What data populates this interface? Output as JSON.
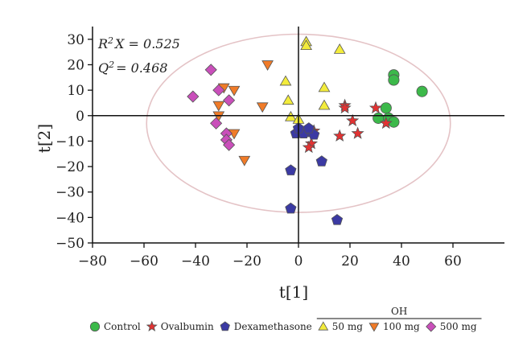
{
  "chart_data": {
    "type": "scatter",
    "title": "",
    "xlabel": "t[1]",
    "ylabel": "t[2]",
    "xlim": [
      -80,
      80
    ],
    "ylim": [
      -50,
      35
    ],
    "xticks": [
      -80,
      -60,
      -40,
      -20,
      0,
      20,
      40,
      60
    ],
    "yticks": [
      -50,
      -40,
      -30,
      -20,
      -10,
      0,
      10,
      20,
      30
    ],
    "grid": false,
    "annotations": {
      "r2x_prefix": "R",
      "r2x_sup": "2",
      "r2x_rest": "X = 0.525",
      "q2_prefix": "Q",
      "q2_sup": "2",
      "q2_rest": "= 0.468"
    },
    "confidence_ellipse": {
      "cx": 0,
      "cy": -3,
      "rx": 59,
      "ry": 35,
      "color": "#e4c3c6"
    },
    "legend": {
      "position": "bottom",
      "group_label": "OH"
    },
    "series": [
      {
        "name": "Control",
        "marker": "circle",
        "color": "#3cb94a",
        "points": [
          [
            37,
            16
          ],
          [
            37,
            14
          ],
          [
            48,
            9.5
          ],
          [
            34,
            3
          ],
          [
            31,
            -1
          ],
          [
            35,
            -1
          ],
          [
            37,
            -2.5
          ]
        ]
      },
      {
        "name": "Ovalbumin",
        "marker": "star",
        "color": "#e23232",
        "points": [
          [
            18,
            4
          ],
          [
            18,
            3
          ],
          [
            30,
            3
          ],
          [
            21,
            -2
          ],
          [
            34,
            -3
          ],
          [
            23,
            -7
          ],
          [
            16,
            -8
          ],
          [
            6,
            -6
          ],
          [
            5,
            -11
          ],
          [
            4,
            -12.5
          ]
        ]
      },
      {
        "name": "Dexamethasone",
        "marker": "pentagon",
        "color": "#3b3aa3",
        "points": [
          [
            -1,
            -7
          ],
          [
            2,
            -7
          ],
          [
            5,
            -6.5
          ],
          [
            6,
            -7.5
          ],
          [
            0,
            -5
          ],
          [
            4,
            -5
          ],
          [
            9,
            -18
          ],
          [
            -3,
            -21.5
          ],
          [
            -3,
            -36.5
          ],
          [
            15,
            -41
          ]
        ]
      },
      {
        "name": "50 mg",
        "marker": "triangle-up",
        "color": "#f3ec3c",
        "points": [
          [
            3,
            29
          ],
          [
            3,
            27.5
          ],
          [
            16,
            26
          ],
          [
            -5,
            13.5
          ],
          [
            10,
            11
          ],
          [
            -4,
            6
          ],
          [
            10,
            4
          ],
          [
            -3,
            -0.5
          ],
          [
            0,
            -1.5
          ]
        ]
      },
      {
        "name": "100 mg",
        "marker": "triangle-down",
        "color": "#f07b28",
        "points": [
          [
            -12,
            20
          ],
          [
            -29,
            11
          ],
          [
            -25,
            10
          ],
          [
            -31,
            4
          ],
          [
            -14,
            3.5
          ],
          [
            -31,
            0
          ],
          [
            -25,
            -7
          ],
          [
            -21,
            -17.5
          ]
        ]
      },
      {
        "name": "500 mg",
        "marker": "diamond",
        "color": "#c94fba",
        "points": [
          [
            -34,
            18
          ],
          [
            -41,
            7.5
          ],
          [
            -31,
            10
          ],
          [
            -27,
            6
          ],
          [
            -32,
            -3
          ],
          [
            -28,
            -7
          ],
          [
            -28,
            -9.5
          ],
          [
            -27,
            -11.5
          ]
        ]
      }
    ]
  }
}
